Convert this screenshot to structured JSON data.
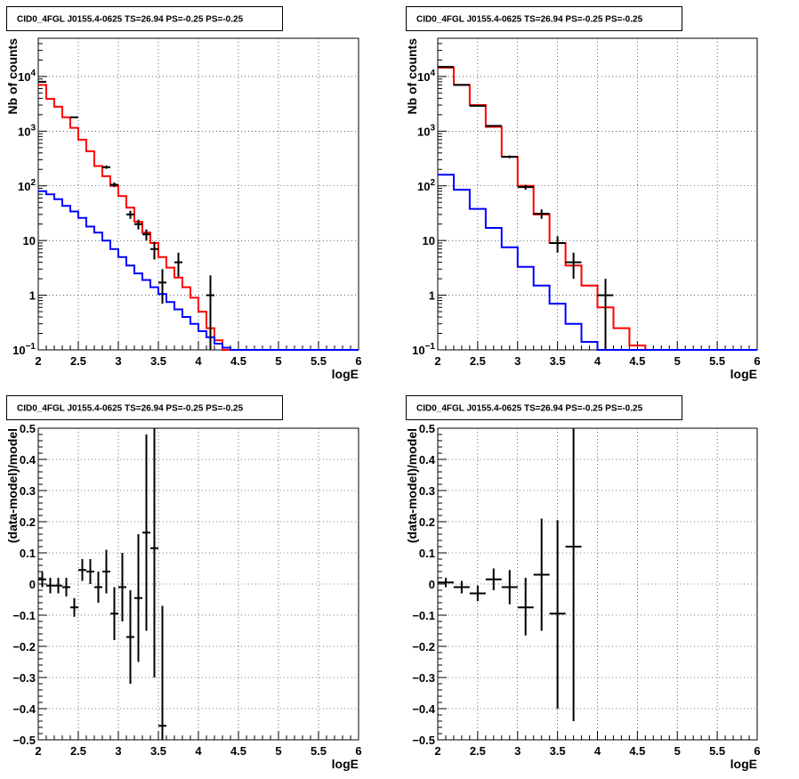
{
  "chart_data": [
    {
      "type": "line",
      "panel": "top-left",
      "title": "CID0_4FGL J0155.4-0625 TS=26.94 PS=-0.25 PS=-0.25",
      "xlabel": "logE",
      "ylabel": "Nb of counts",
      "xlim": [
        2,
        6
      ],
      "ylim": [
        0.1,
        50000
      ],
      "ylog": true,
      "grid": true,
      "xticks": [
        "2",
        "2.5",
        "3",
        "3.5",
        "4",
        "4.5",
        "5",
        "5.5",
        "6"
      ],
      "yticks": [
        {
          "value": 0.1,
          "base": "10",
          "exp": "−1"
        },
        {
          "value": 1,
          "label": "1"
        },
        {
          "value": 10,
          "label": "10"
        },
        {
          "value": 100,
          "base": "10",
          "exp": "2"
        },
        {
          "value": 1000,
          "base": "10",
          "exp": "3"
        },
        {
          "value": 10000,
          "base": "10",
          "exp": "4"
        }
      ],
      "bin_edges": [
        2.0,
        2.1,
        2.2,
        2.3,
        2.4,
        2.5,
        2.6,
        2.7,
        2.8,
        2.9,
        3.0,
        3.1,
        3.2,
        3.3,
        3.4,
        3.5,
        3.6,
        3.7,
        3.8,
        3.9,
        4.0,
        4.1,
        4.2,
        4.3,
        4.4,
        4.5,
        4.6,
        4.7,
        4.8,
        4.9,
        5.0,
        5.1,
        5.2,
        5.3,
        5.4,
        5.5,
        5.6,
        5.7,
        5.8,
        5.9,
        6.0
      ],
      "series": [
        {
          "color": "#ff0000",
          "style": "step",
          "values": [
            7000,
            3900,
            2800,
            1800,
            1150,
            700,
            430,
            230,
            150,
            100,
            65,
            40,
            22,
            14,
            9,
            5,
            3.2,
            2.1,
            1.4,
            0.9,
            0.5,
            0.25,
            0.15,
            0.1,
            0.1,
            0.1,
            0.1,
            0.1,
            0.1,
            0.1,
            0.1,
            0.1,
            0.1,
            0.1,
            0.1,
            0.1,
            0.1,
            0.1,
            0.1,
            0.1
          ]
        },
        {
          "color": "#0000ff",
          "style": "step",
          "values": [
            80,
            70,
            57,
            43,
            34,
            26,
            18,
            14,
            10,
            7,
            5,
            3.5,
            2.5,
            1.9,
            1.4,
            1.05,
            0.75,
            0.55,
            0.4,
            0.3,
            0.22,
            0.17,
            0.13,
            0.11,
            0.1,
            0.1,
            0.1,
            0.1,
            0.1,
            0.1,
            0.1,
            0.1,
            0.1,
            0.1,
            0.1,
            0.1,
            0.1,
            0.1,
            0.1,
            0.1
          ]
        }
      ],
      "points": [
        {
          "x": 2.05,
          "y": 8000,
          "lo": 7900,
          "hi": 8100,
          "xerr": 0.05
        },
        {
          "x": 2.45,
          "y": 1800,
          "lo": 1760,
          "hi": 1840,
          "xerr": 0.05
        },
        {
          "x": 2.85,
          "y": 220,
          "lo": 205,
          "hi": 235,
          "xerr": 0.05
        },
        {
          "x": 2.95,
          "y": 105,
          "lo": 95,
          "hi": 115,
          "xerr": 0.05
        },
        {
          "x": 3.15,
          "y": 30,
          "lo": 25,
          "hi": 35,
          "xerr": 0.05
        },
        {
          "x": 3.25,
          "y": 20,
          "lo": 16,
          "hi": 24,
          "xerr": 0.05
        },
        {
          "x": 3.35,
          "y": 13,
          "lo": 10,
          "hi": 16,
          "xerr": 0.05
        },
        {
          "x": 3.45,
          "y": 7,
          "lo": 4.5,
          "hi": 9.5,
          "xerr": 0.05
        },
        {
          "x": 3.55,
          "y": 1.7,
          "lo": 0.7,
          "hi": 3.0,
          "xerr": 0.05
        },
        {
          "x": 3.75,
          "y": 4,
          "lo": 2.2,
          "hi": 6,
          "xerr": 0.05
        },
        {
          "x": 4.15,
          "y": 1,
          "lo": 0.1,
          "hi": 2.3,
          "xerr": 0.05
        }
      ]
    },
    {
      "type": "line",
      "panel": "top-right",
      "title": "CID0_4FGL J0155.4-0625 TS=26.94 PS=-0.25 PS=-0.25",
      "xlabel": "logE",
      "ylabel": "Nb of counts",
      "xlim": [
        2,
        6
      ],
      "ylim": [
        0.1,
        50000
      ],
      "ylog": true,
      "grid": true,
      "xticks": [
        "2",
        "2.5",
        "3",
        "3.5",
        "4",
        "4.5",
        "5",
        "5.5",
        "6"
      ],
      "yticks": [
        {
          "value": 0.1,
          "base": "10",
          "exp": "−1"
        },
        {
          "value": 1,
          "label": "1"
        },
        {
          "value": 10,
          "label": "10"
        },
        {
          "value": 100,
          "base": "10",
          "exp": "2"
        },
        {
          "value": 1000,
          "base": "10",
          "exp": "3"
        },
        {
          "value": 10000,
          "base": "10",
          "exp": "4"
        }
      ],
      "bin_edges": [
        2.0,
        2.2,
        2.4,
        2.6,
        2.8,
        3.0,
        3.2,
        3.4,
        3.6,
        3.8,
        4.0,
        4.2,
        4.4,
        4.6,
        4.8,
        5.0,
        5.2,
        5.4,
        5.6,
        5.8,
        6.0
      ],
      "series": [
        {
          "color": "#ff0000",
          "style": "step",
          "values": [
            14500,
            7000,
            3000,
            1200,
            340,
            100,
            30,
            9,
            3.5,
            1.5,
            0.6,
            0.25,
            0.12,
            0.1,
            0.1,
            0.1,
            0.1,
            0.1,
            0.1,
            0.1
          ]
        },
        {
          "color": "#0000ff",
          "style": "step",
          "values": [
            160,
            85,
            38,
            17,
            7.5,
            3.3,
            1.5,
            0.7,
            0.3,
            0.14,
            0.1,
            0.1,
            0.1,
            0.1,
            0.1,
            0.1,
            0.1,
            0.1,
            0.1,
            0.1
          ]
        }
      ],
      "points": [
        {
          "x": 2.1,
          "y": 15000,
          "lo": 14870,
          "hi": 15130,
          "xerr": 0.1
        },
        {
          "x": 2.3,
          "y": 7000,
          "lo": 6910,
          "hi": 7090,
          "xerr": 0.1
        },
        {
          "x": 2.5,
          "y": 2900,
          "lo": 2850,
          "hi": 2950,
          "xerr": 0.1
        },
        {
          "x": 2.7,
          "y": 1250,
          "lo": 1215,
          "hi": 1285,
          "xerr": 0.1
        },
        {
          "x": 2.9,
          "y": 340,
          "lo": 320,
          "hi": 360,
          "xerr": 0.1
        },
        {
          "x": 3.1,
          "y": 95,
          "lo": 85,
          "hi": 105,
          "xerr": 0.1
        },
        {
          "x": 3.3,
          "y": 31,
          "lo": 25,
          "hi": 37,
          "xerr": 0.1
        },
        {
          "x": 3.5,
          "y": 9,
          "lo": 6,
          "hi": 12,
          "xerr": 0.1
        },
        {
          "x": 3.7,
          "y": 4,
          "lo": 2,
          "hi": 6,
          "xerr": 0.1
        },
        {
          "x": 4.1,
          "y": 1,
          "lo": 0.1,
          "hi": 2,
          "xerr": 0.1
        }
      ]
    },
    {
      "type": "scatter",
      "panel": "bottom-left",
      "title": "CID0_4FGL J0155.4-0625 TS=26.94 PS=-0.25 PS=-0.25",
      "xlabel": "logE",
      "ylabel": "(data-model)/model",
      "xlim": [
        2,
        6
      ],
      "ylim": [
        -0.5,
        0.5
      ],
      "ylog": false,
      "grid": true,
      "xticks": [
        "2",
        "2.5",
        "3",
        "3.5",
        "4",
        "4.5",
        "5",
        "5.5",
        "6"
      ],
      "yticks": [
        {
          "value": -0.5,
          "label": "−0.5"
        },
        {
          "value": -0.4,
          "label": "−0.4"
        },
        {
          "value": -0.3,
          "label": "−0.3"
        },
        {
          "value": -0.2,
          "label": "−0.2"
        },
        {
          "value": -0.1,
          "label": "−0.1"
        },
        {
          "value": 0,
          "label": "0"
        },
        {
          "value": 0.1,
          "label": "0.1"
        },
        {
          "value": 0.2,
          "label": "0.2"
        },
        {
          "value": 0.3,
          "label": "0.3"
        },
        {
          "value": 0.4,
          "label": "0.4"
        },
        {
          "value": 0.5,
          "label": "0.5"
        }
      ],
      "series": [],
      "points": [
        {
          "x": 2.05,
          "y": 0.015,
          "lo": -0.01,
          "hi": 0.04,
          "xerr": 0.05
        },
        {
          "x": 2.15,
          "y": -0.005,
          "lo": -0.03,
          "hi": 0.02,
          "xerr": 0.05
        },
        {
          "x": 2.25,
          "y": -0.005,
          "lo": -0.03,
          "hi": 0.02,
          "xerr": 0.05
        },
        {
          "x": 2.35,
          "y": -0.01,
          "lo": -0.04,
          "hi": 0.02,
          "xerr": 0.05
        },
        {
          "x": 2.45,
          "y": -0.075,
          "lo": -0.105,
          "hi": -0.045,
          "xerr": 0.05
        },
        {
          "x": 2.55,
          "y": 0.045,
          "lo": 0.01,
          "hi": 0.08,
          "xerr": 0.05
        },
        {
          "x": 2.65,
          "y": 0.04,
          "lo": 0.0,
          "hi": 0.08,
          "xerr": 0.05
        },
        {
          "x": 2.75,
          "y": -0.01,
          "lo": -0.06,
          "hi": 0.04,
          "xerr": 0.05
        },
        {
          "x": 2.85,
          "y": 0.04,
          "lo": -0.03,
          "hi": 0.11,
          "xerr": 0.05
        },
        {
          "x": 2.95,
          "y": -0.095,
          "lo": -0.18,
          "hi": -0.01,
          "xerr": 0.05
        },
        {
          "x": 3.05,
          "y": -0.01,
          "lo": -0.12,
          "hi": 0.1,
          "xerr": 0.05
        },
        {
          "x": 3.15,
          "y": -0.17,
          "lo": -0.32,
          "hi": -0.02,
          "xerr": 0.05
        },
        {
          "x": 3.25,
          "y": -0.045,
          "lo": -0.25,
          "hi": 0.16,
          "xerr": 0.05
        },
        {
          "x": 3.35,
          "y": 0.165,
          "lo": -0.15,
          "hi": 0.48,
          "xerr": 0.05
        },
        {
          "x": 3.45,
          "y": 0.115,
          "lo": -0.3,
          "hi": 0.5,
          "xerr": 0.05
        },
        {
          "x": 3.55,
          "y": -0.455,
          "lo": -0.5,
          "hi": -0.07,
          "xerr": 0.05
        }
      ]
    },
    {
      "type": "scatter",
      "panel": "bottom-right",
      "title": "CID0_4FGL J0155.4-0625 TS=26.94 PS=-0.25 PS=-0.25",
      "xlabel": "logE",
      "ylabel": "(data-model)/model",
      "xlim": [
        2,
        6
      ],
      "ylim": [
        -0.5,
        0.5
      ],
      "ylog": false,
      "grid": true,
      "xticks": [
        "2",
        "2.5",
        "3",
        "3.5",
        "4",
        "4.5",
        "5",
        "5.5",
        "6"
      ],
      "yticks": [
        {
          "value": -0.5,
          "label": "−0.5"
        },
        {
          "value": -0.4,
          "label": "−0.4"
        },
        {
          "value": -0.3,
          "label": "−0.3"
        },
        {
          "value": -0.2,
          "label": "−0.2"
        },
        {
          "value": -0.1,
          "label": "−0.1"
        },
        {
          "value": 0,
          "label": "0"
        },
        {
          "value": 0.1,
          "label": "0.1"
        },
        {
          "value": 0.2,
          "label": "0.2"
        },
        {
          "value": 0.3,
          "label": "0.3"
        },
        {
          "value": 0.4,
          "label": "0.4"
        },
        {
          "value": 0.5,
          "label": "0.5"
        }
      ],
      "series": [],
      "points": [
        {
          "x": 2.1,
          "y": 0.005,
          "lo": -0.01,
          "hi": 0.02,
          "xerr": 0.1
        },
        {
          "x": 2.3,
          "y": -0.01,
          "lo": -0.03,
          "hi": 0.01,
          "xerr": 0.1
        },
        {
          "x": 2.5,
          "y": -0.03,
          "lo": -0.055,
          "hi": -0.005,
          "xerr": 0.1
        },
        {
          "x": 2.7,
          "y": 0.015,
          "lo": -0.02,
          "hi": 0.05,
          "xerr": 0.1
        },
        {
          "x": 2.9,
          "y": -0.01,
          "lo": -0.065,
          "hi": 0.045,
          "xerr": 0.1
        },
        {
          "x": 3.1,
          "y": -0.075,
          "lo": -0.165,
          "hi": 0.02,
          "xerr": 0.1
        },
        {
          "x": 3.3,
          "y": 0.03,
          "lo": -0.15,
          "hi": 0.21,
          "xerr": 0.1
        },
        {
          "x": 3.5,
          "y": -0.095,
          "lo": -0.4,
          "hi": 0.205,
          "xerr": 0.1
        },
        {
          "x": 3.7,
          "y": 0.12,
          "lo": -0.44,
          "hi": 0.5,
          "xerr": 0.1
        }
      ]
    }
  ]
}
